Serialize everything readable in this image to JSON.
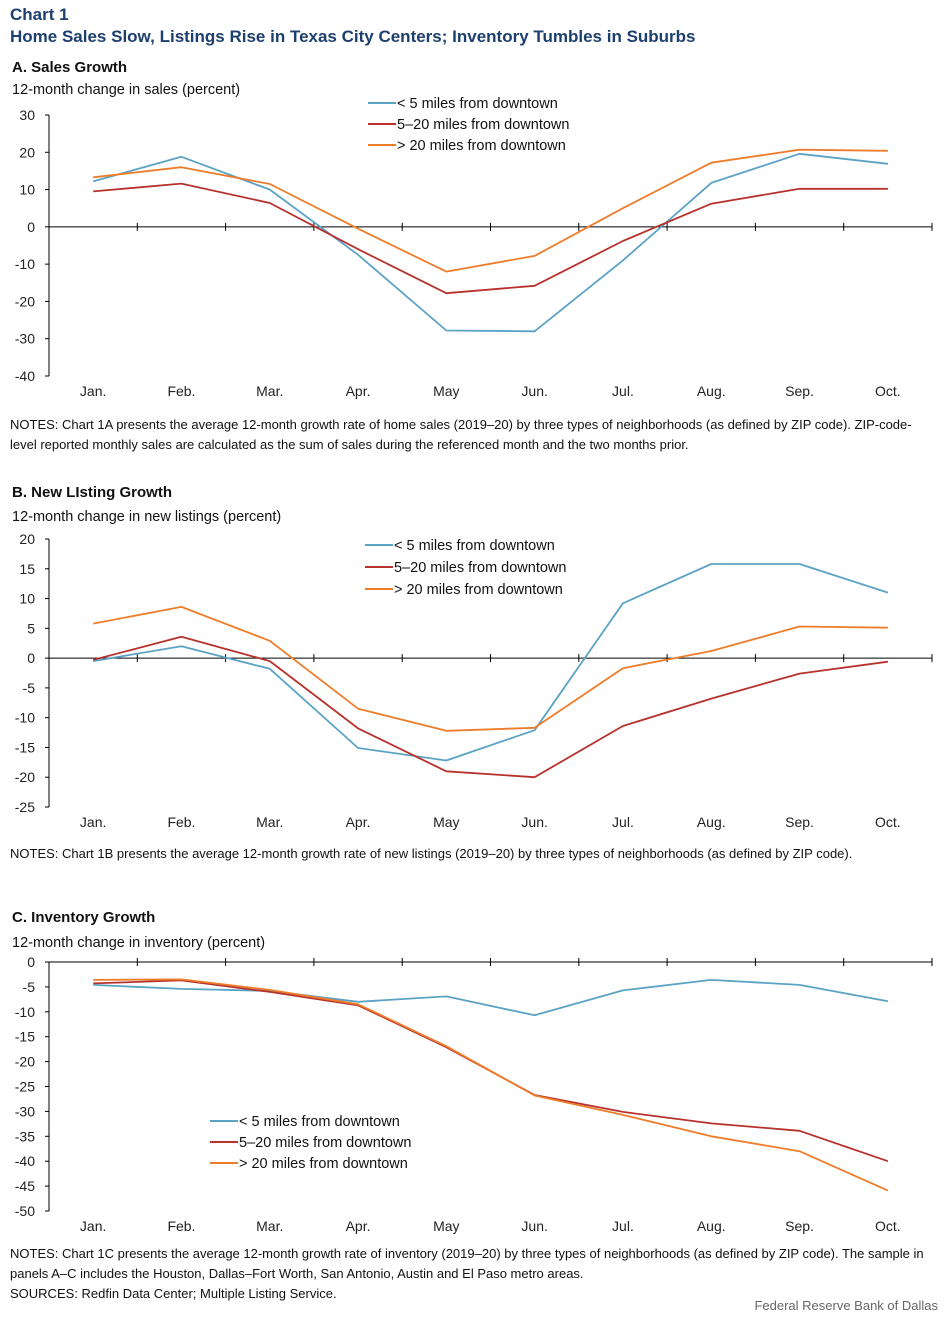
{
  "header": {
    "chart_label": "Chart 1",
    "title": "Home Sales Slow, Listings Rise in Texas City Centers; Inventory Tumbles in Suburbs"
  },
  "colors": {
    "lt5": "#5ba3c4",
    "mid": "#b8322d",
    "gt20": "#ee7d2b"
  },
  "footer": {
    "credit": "Federal Reserve Bank of Dallas"
  },
  "chart_data": [
    {
      "type": "line",
      "panel_title": "A. Sales Growth",
      "ylabel": "12-month change in sales (percent)",
      "categories": [
        "Jan.",
        "Feb.",
        "Mar.",
        "Apr.",
        "May",
        "Jun.",
        "Jul.",
        "Aug.",
        "Sep.",
        "Oct."
      ],
      "ylim": [
        -40,
        30
      ],
      "yticks": [
        30,
        20,
        10,
        0,
        -10,
        -20,
        -30,
        -40
      ],
      "legend_position": "top-center",
      "series": [
        {
          "name": "< 5 miles from downtown",
          "color": "#5ba3c4",
          "values": [
            12.2,
            18.8,
            10.0,
            -7.5,
            -27.8,
            -28.0,
            -9.0,
            11.8,
            19.6,
            16.9
          ]
        },
        {
          "name": "5–20 miles from downtown",
          "color": "#b8322d",
          "values": [
            9.5,
            11.6,
            6.4,
            -6.0,
            -17.8,
            -15.8,
            -3.8,
            6.2,
            10.2,
            10.2
          ]
        },
        {
          "name": "> 20 miles from downtown",
          "color": "#ee7d2b",
          "values": [
            13.3,
            16.0,
            11.5,
            -0.5,
            -12.0,
            -7.8,
            5.0,
            17.2,
            20.7,
            20.4
          ]
        }
      ],
      "notes": "NOTES: Chart 1A presents the average 12-month growth rate of home sales (2019–20) by three types of neighborhoods (as defined by ZIP code). ZIP-code-level reported monthly sales are calculated as the sum of sales during the referenced month and the two months prior."
    },
    {
      "type": "line",
      "panel_title": "B. New LIsting Growth",
      "ylabel": "12-month change in new listings (percent)",
      "categories": [
        "Jan.",
        "Feb.",
        "Mar.",
        "Apr.",
        "May",
        "Jun.",
        "Jul.",
        "Aug.",
        "Sep.",
        "Oct."
      ],
      "ylim": [
        -25,
        20
      ],
      "yticks": [
        20,
        15,
        10,
        5,
        0,
        -5,
        -10,
        -15,
        -20,
        -25
      ],
      "legend_position": "top-center",
      "series": [
        {
          "name": "< 5 miles from downtown",
          "color": "#5ba3c4",
          "values": [
            -0.5,
            2.0,
            -1.8,
            -15.1,
            -17.2,
            -12.1,
            9.2,
            15.8,
            15.8,
            11.0
          ]
        },
        {
          "name": "5–20 miles from downtown",
          "color": "#b8322d",
          "values": [
            -0.3,
            3.6,
            -0.5,
            -11.8,
            -19.0,
            -20.0,
            -11.4,
            -6.8,
            -2.6,
            -0.6
          ]
        },
        {
          "name": "> 20 miles from downtown",
          "color": "#ee7d2b",
          "values": [
            5.8,
            8.6,
            2.9,
            -8.5,
            -12.2,
            -11.7,
            -1.7,
            1.2,
            5.3,
            5.1
          ]
        }
      ],
      "notes": "NOTES: Chart 1B presents the average 12-month growth rate of new listings (2019–20) by three types of neighborhoods (as defined by ZIP code)."
    },
    {
      "type": "line",
      "panel_title": "C. Inventory Growth",
      "ylabel": "12-month change in inventory  (percent)",
      "categories": [
        "Jan.",
        "Feb.",
        "Mar.",
        "Apr.",
        "May",
        "Jun.",
        "Jul.",
        "Aug.",
        "Sep.",
        "Oct."
      ],
      "ylim": [
        -50,
        0
      ],
      "yticks": [
        0,
        -5,
        -10,
        -15,
        -20,
        -25,
        -30,
        -35,
        -40,
        -45,
        -50
      ],
      "legend_position": "bottom-left",
      "series": [
        {
          "name": "< 5 miles from downtown",
          "color": "#5ba3c4",
          "values": [
            -4.6,
            -5.4,
            -5.8,
            -8.0,
            -6.9,
            -10.7,
            -5.7,
            -3.6,
            -4.6,
            -7.9
          ]
        },
        {
          "name": "5–20 miles from downtown",
          "color": "#b8322d",
          "values": [
            -4.3,
            -3.7,
            -6.0,
            -8.7,
            -17.1,
            -26.7,
            -30.1,
            -32.4,
            -33.9,
            -40.0
          ]
        },
        {
          "name": "> 20 miles from downtown",
          "color": "#ee7d2b",
          "values": [
            -3.6,
            -3.5,
            -5.6,
            -8.5,
            -16.9,
            -26.8,
            -30.7,
            -35.0,
            -38.0,
            -45.9
          ]
        }
      ],
      "notes": "NOTES: Chart 1C presents the average 12-month growth rate of inventory  (2019–20) by three types of neighborhoods (as defined by ZIP code). The sample in panels A–C includes the Houston, Dallas–Fort Worth, San Antonio, Austin and El Paso metro areas.",
      "sources": "SOURCES: Redfin Data Center; Multiple  Listing Service."
    }
  ]
}
